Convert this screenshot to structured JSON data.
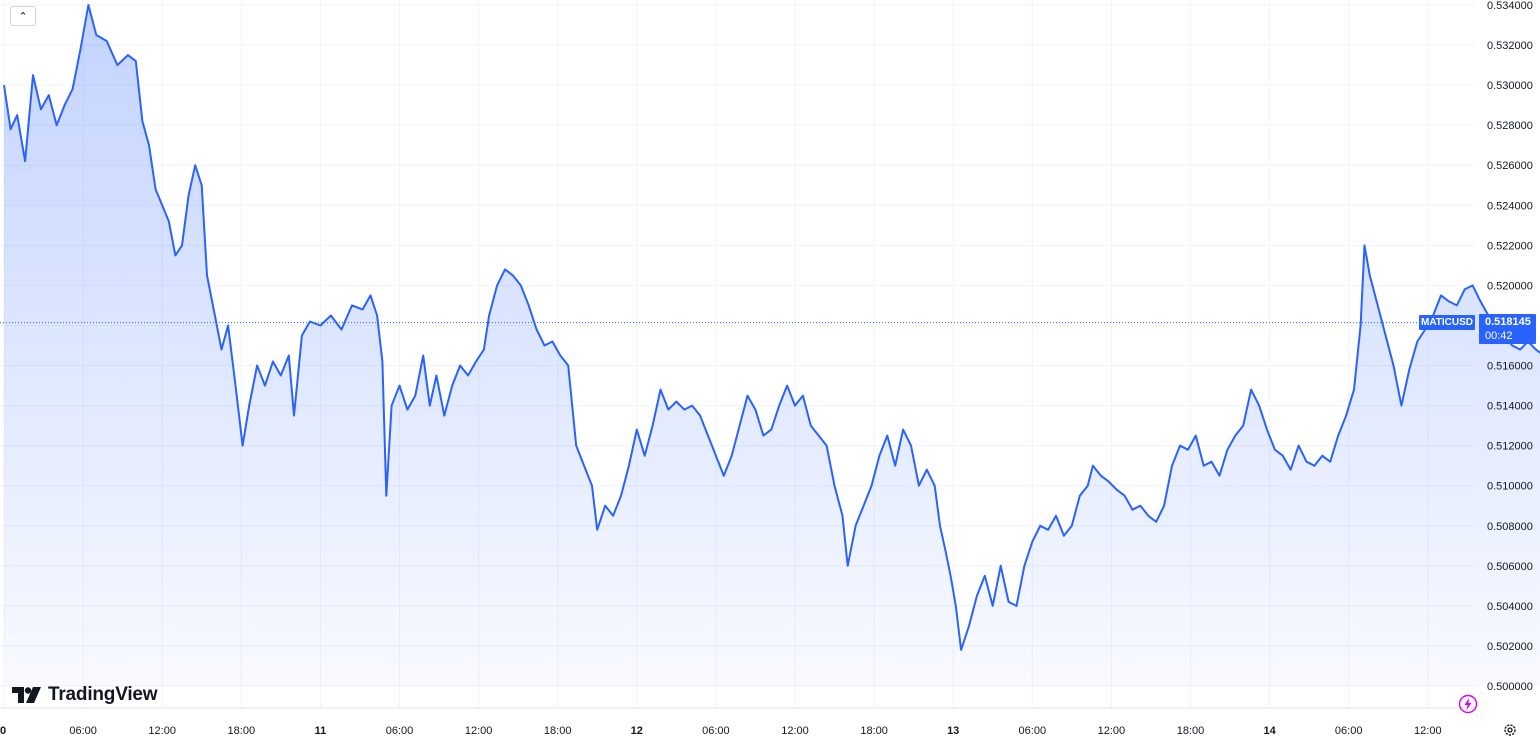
{
  "chart_data": {
    "type": "area",
    "symbol": "MATICUSD",
    "last_price": "0.518145",
    "countdown": "00:42",
    "y_axis": {
      "ticks": [
        "0.534000",
        "0.532000",
        "0.530000",
        "0.528000",
        "0.526000",
        "0.524000",
        "0.522000",
        "0.520000",
        "0.518000",
        "0.516000",
        "0.514000",
        "0.512000",
        "0.510000",
        "0.508000",
        "0.506000",
        "0.504000",
        "0.502000",
        "0.500000"
      ],
      "ylim": [
        0.5,
        0.534
      ]
    },
    "x_axis": {
      "ticks": [
        {
          "label": "0",
          "bold": true
        },
        {
          "label": "06:00",
          "bold": false
        },
        {
          "label": "12:00",
          "bold": false
        },
        {
          "label": "18:00",
          "bold": false
        },
        {
          "label": "11",
          "bold": true
        },
        {
          "label": "06:00",
          "bold": false
        },
        {
          "label": "12:00",
          "bold": false
        },
        {
          "label": "18:00",
          "bold": false
        },
        {
          "label": "12",
          "bold": true
        },
        {
          "label": "06:00",
          "bold": false
        },
        {
          "label": "12:00",
          "bold": false
        },
        {
          "label": "18:00",
          "bold": false
        },
        {
          "label": "13",
          "bold": true
        },
        {
          "label": "06:00",
          "bold": false
        },
        {
          "label": "12:00",
          "bold": false
        },
        {
          "label": "18:00",
          "bold": false
        },
        {
          "label": "14",
          "bold": true
        },
        {
          "label": "06:00",
          "bold": false
        },
        {
          "label": "12:00",
          "bold": false
        }
      ]
    },
    "series": [
      {
        "values": [
          [
            0.0,
            0.53
          ],
          [
            0.5,
            0.5278
          ],
          [
            1.0,
            0.5285
          ],
          [
            1.6,
            0.5262
          ],
          [
            2.2,
            0.5305
          ],
          [
            2.8,
            0.5288
          ],
          [
            3.4,
            0.5295
          ],
          [
            4.0,
            0.528
          ],
          [
            4.6,
            0.529
          ],
          [
            5.2,
            0.5298
          ],
          [
            5.8,
            0.5318
          ],
          [
            6.4,
            0.534
          ],
          [
            7.0,
            0.5325
          ],
          [
            7.8,
            0.5322
          ],
          [
            8.6,
            0.531
          ],
          [
            9.4,
            0.5315
          ],
          [
            10.0,
            0.5312
          ],
          [
            10.5,
            0.5282
          ],
          [
            11.0,
            0.527
          ],
          [
            11.5,
            0.5248
          ],
          [
            12.0,
            0.524
          ],
          [
            12.5,
            0.5232
          ],
          [
            13.0,
            0.5215
          ],
          [
            13.5,
            0.522
          ],
          [
            14.0,
            0.5245
          ],
          [
            14.5,
            0.526
          ],
          [
            15.0,
            0.525
          ],
          [
            15.4,
            0.5205
          ],
          [
            16.0,
            0.5185
          ],
          [
            16.5,
            0.5168
          ],
          [
            17.0,
            0.518
          ],
          [
            17.6,
            0.5148
          ],
          [
            18.1,
            0.512
          ],
          [
            18.6,
            0.514
          ],
          [
            19.2,
            0.516
          ],
          [
            19.8,
            0.515
          ],
          [
            20.4,
            0.5162
          ],
          [
            21.0,
            0.5155
          ],
          [
            21.6,
            0.5165
          ],
          [
            22.0,
            0.5135
          ],
          [
            22.6,
            0.5175
          ],
          [
            23.2,
            0.5182
          ],
          [
            24.0,
            0.518
          ],
          [
            24.8,
            0.5185
          ],
          [
            25.6,
            0.5178
          ],
          [
            26.4,
            0.519
          ],
          [
            27.2,
            0.5188
          ],
          [
            27.8,
            0.5195
          ],
          [
            28.3,
            0.5185
          ],
          [
            28.7,
            0.5162
          ],
          [
            29.0,
            0.5095
          ],
          [
            29.4,
            0.514
          ],
          [
            30.0,
            0.515
          ],
          [
            30.6,
            0.5138
          ],
          [
            31.2,
            0.5145
          ],
          [
            31.8,
            0.5165
          ],
          [
            32.3,
            0.514
          ],
          [
            32.8,
            0.5155
          ],
          [
            33.4,
            0.5135
          ],
          [
            34.0,
            0.515
          ],
          [
            34.6,
            0.516
          ],
          [
            35.2,
            0.5155
          ],
          [
            35.8,
            0.5162
          ],
          [
            36.4,
            0.5168
          ],
          [
            36.8,
            0.5185
          ],
          [
            37.4,
            0.52
          ],
          [
            38.0,
            0.5208
          ],
          [
            38.6,
            0.5205
          ],
          [
            39.2,
            0.52
          ],
          [
            39.8,
            0.519
          ],
          [
            40.4,
            0.5178
          ],
          [
            41.0,
            0.517
          ],
          [
            41.6,
            0.5172
          ],
          [
            42.2,
            0.5165
          ],
          [
            42.8,
            0.516
          ],
          [
            43.4,
            0.512
          ],
          [
            44.0,
            0.511
          ],
          [
            44.6,
            0.51
          ],
          [
            45.0,
            0.5078
          ],
          [
            45.6,
            0.509
          ],
          [
            46.2,
            0.5085
          ],
          [
            46.8,
            0.5095
          ],
          [
            47.4,
            0.511
          ],
          [
            48.0,
            0.5128
          ],
          [
            48.6,
            0.5115
          ],
          [
            49.2,
            0.513
          ],
          [
            49.8,
            0.5148
          ],
          [
            50.4,
            0.5138
          ],
          [
            51.0,
            0.5142
          ],
          [
            51.6,
            0.5138
          ],
          [
            52.2,
            0.514
          ],
          [
            52.8,
            0.5135
          ],
          [
            53.4,
            0.5125
          ],
          [
            54.0,
            0.5115
          ],
          [
            54.6,
            0.5105
          ],
          [
            55.2,
            0.5115
          ],
          [
            55.8,
            0.513
          ],
          [
            56.4,
            0.5145
          ],
          [
            57.0,
            0.5138
          ],
          [
            57.6,
            0.5125
          ],
          [
            58.2,
            0.5128
          ],
          [
            58.8,
            0.514
          ],
          [
            59.4,
            0.515
          ],
          [
            60.0,
            0.514
          ],
          [
            60.6,
            0.5145
          ],
          [
            61.2,
            0.513
          ],
          [
            61.8,
            0.5125
          ],
          [
            62.4,
            0.512
          ],
          [
            63.0,
            0.51
          ],
          [
            63.6,
            0.5085
          ],
          [
            64.0,
            0.506
          ],
          [
            64.6,
            0.508
          ],
          [
            65.2,
            0.509
          ],
          [
            65.8,
            0.51
          ],
          [
            66.4,
            0.5115
          ],
          [
            67.0,
            0.5125
          ],
          [
            67.6,
            0.511
          ],
          [
            68.2,
            0.5128
          ],
          [
            68.8,
            0.512
          ],
          [
            69.4,
            0.51
          ],
          [
            70.0,
            0.5108
          ],
          [
            70.6,
            0.51
          ],
          [
            71.0,
            0.508
          ],
          [
            71.4,
            0.5068
          ],
          [
            71.8,
            0.5055
          ],
          [
            72.2,
            0.504
          ],
          [
            72.6,
            0.5018
          ],
          [
            73.2,
            0.503
          ],
          [
            73.8,
            0.5045
          ],
          [
            74.4,
            0.5055
          ],
          [
            75.0,
            0.504
          ],
          [
            75.6,
            0.506
          ],
          [
            76.2,
            0.5042
          ],
          [
            76.8,
            0.504
          ],
          [
            77.4,
            0.506
          ],
          [
            78.0,
            0.5072
          ],
          [
            78.6,
            0.508
          ],
          [
            79.2,
            0.5078
          ],
          [
            79.8,
            0.5085
          ],
          [
            80.4,
            0.5075
          ],
          [
            81.0,
            0.508
          ],
          [
            81.6,
            0.5095
          ],
          [
            82.2,
            0.51
          ],
          [
            82.6,
            0.511
          ],
          [
            83.2,
            0.5105
          ],
          [
            83.8,
            0.5102
          ],
          [
            84.4,
            0.5098
          ],
          [
            85.0,
            0.5095
          ],
          [
            85.6,
            0.5088
          ],
          [
            86.2,
            0.509
          ],
          [
            86.8,
            0.5085
          ],
          [
            87.4,
            0.5082
          ],
          [
            88.0,
            0.509
          ],
          [
            88.6,
            0.511
          ],
          [
            89.2,
            0.512
          ],
          [
            89.8,
            0.5118
          ],
          [
            90.4,
            0.5125
          ],
          [
            91.0,
            0.511
          ],
          [
            91.6,
            0.5112
          ],
          [
            92.2,
            0.5105
          ],
          [
            92.8,
            0.5118
          ],
          [
            93.4,
            0.5125
          ],
          [
            94.0,
            0.513
          ],
          [
            94.6,
            0.5148
          ],
          [
            95.2,
            0.514
          ],
          [
            95.8,
            0.5128
          ],
          [
            96.4,
            0.5118
          ],
          [
            97.0,
            0.5115
          ],
          [
            97.6,
            0.5108
          ],
          [
            98.2,
            0.512
          ],
          [
            98.8,
            0.5112
          ],
          [
            99.4,
            0.511
          ],
          [
            100.0,
            0.5115
          ],
          [
            100.6,
            0.5112
          ],
          [
            101.2,
            0.5125
          ],
          [
            101.8,
            0.5135
          ],
          [
            102.4,
            0.5148
          ],
          [
            102.9,
            0.518
          ],
          [
            103.2,
            0.522
          ],
          [
            103.6,
            0.5205
          ],
          [
            104.2,
            0.519
          ],
          [
            104.8,
            0.5175
          ],
          [
            105.4,
            0.516
          ],
          [
            106.0,
            0.514
          ],
          [
            106.6,
            0.5158
          ],
          [
            107.2,
            0.5172
          ],
          [
            107.8,
            0.5178
          ],
          [
            108.4,
            0.5185
          ],
          [
            109.0,
            0.5195
          ],
          [
            109.6,
            0.5192
          ],
          [
            110.2,
            0.519
          ],
          [
            110.8,
            0.5198
          ],
          [
            111.4,
            0.52
          ],
          [
            112.0,
            0.5192
          ],
          [
            112.6,
            0.5185
          ],
          [
            113.2,
            0.5178
          ],
          [
            113.8,
            0.5175
          ],
          [
            114.4,
            0.517
          ],
          [
            115.0,
            0.5168
          ],
          [
            115.6,
            0.5172
          ],
          [
            116.2,
            0.5168
          ],
          [
            116.8,
            0.5165
          ],
          [
            117.4,
            0.517
          ],
          [
            118.0,
            0.5172
          ],
          [
            118.6,
            0.5175
          ],
          [
            119.2,
            0.5178
          ],
          [
            119.8,
            0.518
          ],
          [
            120.4,
            0.5172
          ],
          [
            121.0,
            0.5178
          ],
          [
            121.6,
            0.5185
          ],
          [
            122.2,
            0.519
          ],
          [
            122.8,
            0.5183
          ],
          [
            123.2,
            0.5182
          ]
        ]
      }
    ]
  },
  "ui": {
    "collapse_icon": "chevron-up-icon",
    "logo_text": "TradingView",
    "logo_icon": "tradingview-logo-icon",
    "bolt_icon": "lightning-icon",
    "settings_icon": "gear-icon",
    "line_color": "#2962ff",
    "price_line_color": "#2962ff"
  }
}
